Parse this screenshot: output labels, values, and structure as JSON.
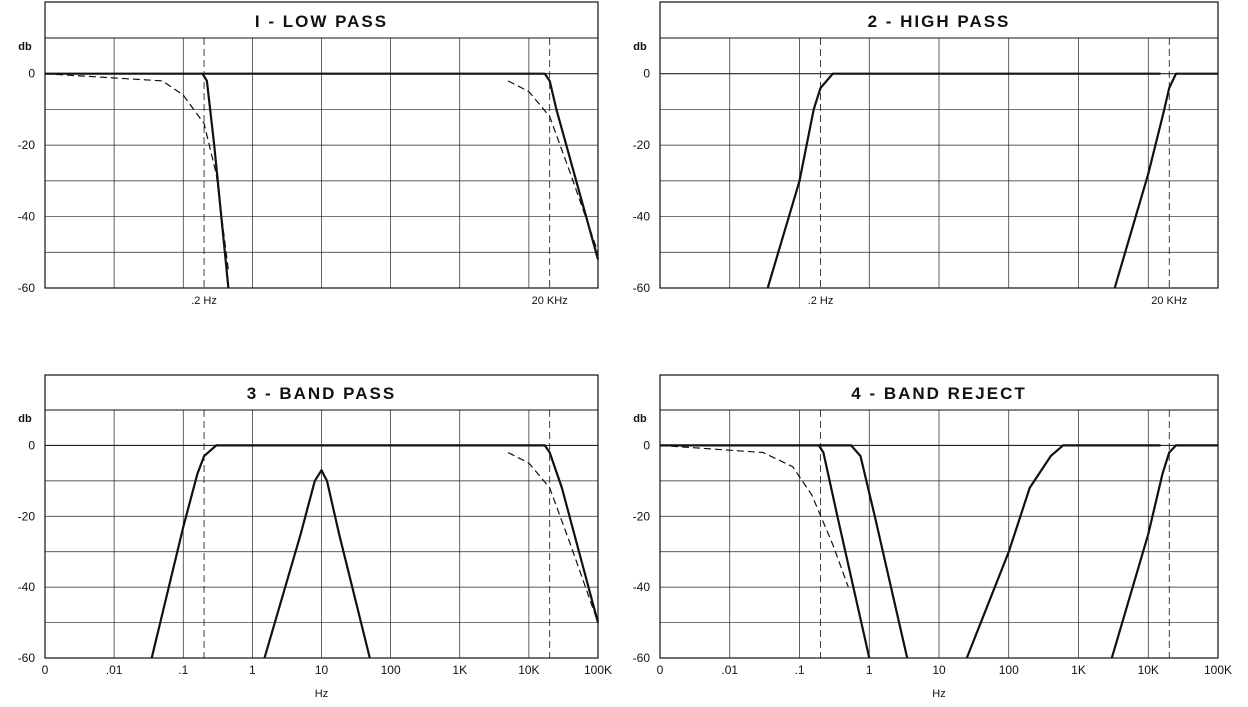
{
  "chart_data": [
    {
      "type": "line",
      "title": "I - LOW PASS",
      "ylabel": "db",
      "xscale": "log",
      "xlim": [
        0.001,
        100000
      ],
      "ylim": [
        -60,
        0
      ],
      "yticks": [
        "0",
        "-20",
        "-40",
        "-60"
      ],
      "xtick_labels": [
        {
          "x": 0.2,
          "label": ".2 Hz"
        },
        {
          "x": 20000,
          "label": "20 KHz"
        }
      ],
      "grid": true,
      "series": [
        {
          "style": "solid",
          "x": [
            0.001,
            0.19,
            0.22,
            0.28,
            0.45
          ],
          "y": [
            0,
            0,
            -2,
            -20,
            -60
          ]
        },
        {
          "style": "dashed",
          "x": [
            0.001,
            0.05,
            0.1,
            0.2,
            0.3,
            0.45
          ],
          "y": [
            0,
            -2,
            -6,
            -14,
            -28,
            -55
          ]
        },
        {
          "style": "solid",
          "x": [
            0.19,
            17000,
            20000,
            25000,
            100000
          ],
          "y": [
            0,
            0,
            -2,
            -10,
            -52
          ]
        },
        {
          "style": "dashed",
          "x": [
            5000,
            10000,
            20000,
            40000,
            100000
          ],
          "y": [
            -2,
            -5,
            -12,
            -28,
            -50
          ]
        }
      ]
    },
    {
      "type": "line",
      "title": "2 - HIGH PASS",
      "ylabel": "db",
      "xscale": "log",
      "xlim": [
        0.001,
        100000
      ],
      "ylim": [
        -60,
        0
      ],
      "yticks": [
        "0",
        "-20",
        "-40",
        "-60"
      ],
      "xtick_labels": [
        {
          "x": 0.2,
          "label": ".2 Hz"
        },
        {
          "x": 20000,
          "label": "20 KHz"
        }
      ],
      "grid": true,
      "series": [
        {
          "style": "solid",
          "x": [
            0.035,
            0.1,
            0.16,
            0.2,
            0.3,
            15000
          ],
          "y": [
            -60,
            -30,
            -10,
            -4,
            0,
            0
          ]
        },
        {
          "style": "solid",
          "x": [
            3300,
            10000,
            17000,
            20000,
            25000,
            100000
          ],
          "y": [
            -60,
            -28,
            -10,
            -4,
            0,
            0
          ]
        }
      ]
    },
    {
      "type": "line",
      "title": "3 - BAND PASS",
      "ylabel": "db",
      "xlabel": "Hz",
      "xscale": "log",
      "xlim": [
        0.001,
        100000
      ],
      "ylim": [
        -60,
        0
      ],
      "xticks": [
        "0",
        ".01",
        ".1",
        "1",
        "10",
        "100",
        "1K",
        "10K",
        "100K"
      ],
      "yticks": [
        "0",
        "-20",
        "-40",
        "-60"
      ],
      "grid": true,
      "series": [
        {
          "style": "solid",
          "x": [
            0.035,
            0.1,
            0.16,
            0.2,
            0.3,
            17000,
            20000,
            30000,
            100000
          ],
          "y": [
            -60,
            -23,
            -8,
            -3,
            0,
            0,
            -2,
            -12,
            -50
          ]
        },
        {
          "style": "dashed",
          "x": [
            5000,
            10000,
            20000,
            40000,
            100000
          ],
          "y": [
            -2,
            -5,
            -12,
            -28,
            -50
          ]
        },
        {
          "style": "solid",
          "x": [
            1.5,
            5,
            8,
            10,
            12,
            18,
            50
          ],
          "y": [
            -60,
            -25,
            -10,
            -7,
            -10,
            -25,
            -60
          ]
        }
      ]
    },
    {
      "type": "line",
      "title": "4 - BAND REJECT",
      "ylabel": "db",
      "xlabel": "Hz",
      "xscale": "log",
      "xlim": [
        0.001,
        100000
      ],
      "ylim": [
        -60,
        0
      ],
      "xticks": [
        "0",
        ".01",
        ".1",
        "1",
        "10",
        "100",
        "1K",
        "10K",
        "100K"
      ],
      "yticks": [
        "0",
        "-20",
        "-40",
        "-60"
      ],
      "grid": true,
      "series": [
        {
          "style": "solid",
          "x": [
            0.001,
            0.19,
            0.22,
            0.35,
            1.0
          ],
          "y": [
            0,
            0,
            -2,
            -20,
            -60
          ]
        },
        {
          "style": "dashed",
          "x": [
            0.001,
            0.03,
            0.08,
            0.15,
            0.3,
            0.5
          ],
          "y": [
            0,
            -2,
            -6,
            -14,
            -28,
            -40
          ]
        },
        {
          "style": "solid",
          "x": [
            0.19,
            0.55,
            0.75,
            1.2,
            3.5
          ],
          "y": [
            0,
            0,
            -3,
            -20,
            -60
          ]
        },
        {
          "style": "solid",
          "x": [
            25,
            100,
            200,
            400,
            600,
            15000
          ],
          "y": [
            -60,
            -30,
            -12,
            -3,
            0,
            0
          ]
        },
        {
          "style": "solid",
          "x": [
            3000,
            10000,
            16000,
            20000,
            25000,
            100000
          ],
          "y": [
            -60,
            -25,
            -8,
            -2,
            0,
            0
          ]
        }
      ]
    }
  ]
}
